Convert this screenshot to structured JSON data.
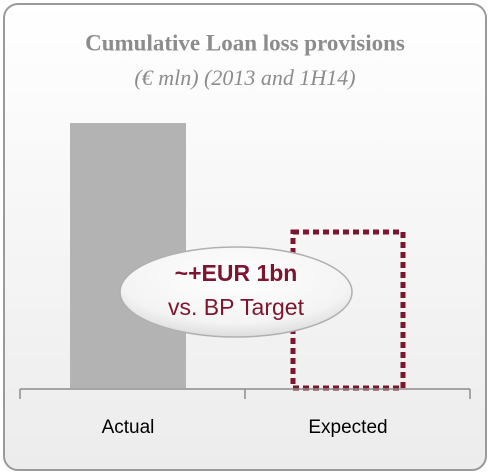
{
  "chart_data": {
    "type": "bar",
    "title": "Cumulative Loan loss provisions",
    "subtitle": "(€ mln) (2013 and 1H14)",
    "categories": [
      "Actual",
      "Expected"
    ],
    "values": [
      100,
      60
    ],
    "colors": [
      "#b3b3b3",
      "#7b1530"
    ],
    "styles": [
      "solid",
      "dashed"
    ],
    "ylim": [
      0,
      100
    ],
    "annotations": [
      "~+EUR 1bn",
      "vs. BP Target"
    ]
  }
}
